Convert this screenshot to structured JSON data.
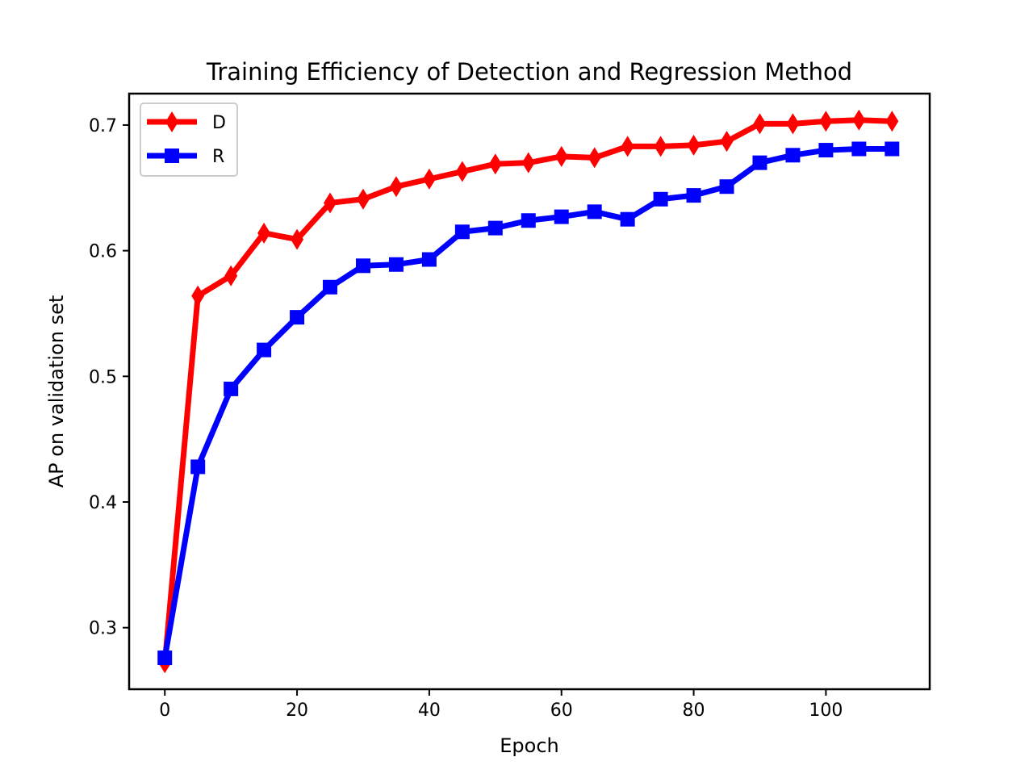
{
  "chart_data": {
    "type": "line",
    "title": "Training Efficiency of Detection and Regression Method",
    "xlabel": "Epoch",
    "ylabel": "AP on validation set",
    "xlim": [
      -5.4,
      115.7
    ],
    "ylim": [
      0.251,
      0.725
    ],
    "xticks": [
      0,
      20,
      40,
      60,
      80,
      100
    ],
    "xtick_labels": [
      "0",
      "20",
      "40",
      "60",
      "80",
      "100"
    ],
    "yticks": [
      0.3,
      0.4,
      0.5,
      0.6,
      0.7
    ],
    "ytick_labels": [
      "0.3",
      "0.4",
      "0.5",
      "0.6",
      "0.7"
    ],
    "grid": false,
    "legend_position": "top-left",
    "x": [
      0,
      5,
      10,
      15,
      20,
      25,
      30,
      35,
      40,
      45,
      50,
      55,
      60,
      65,
      70,
      75,
      80,
      85,
      90,
      95,
      100,
      105,
      110
    ],
    "series": [
      {
        "name": "D",
        "color": "#ff0000",
        "marker": "diamond",
        "values": [
          0.272,
          0.564,
          0.58,
          0.614,
          0.609,
          0.638,
          0.641,
          0.651,
          0.657,
          0.663,
          0.669,
          0.67,
          0.675,
          0.674,
          0.683,
          0.683,
          0.684,
          0.687,
          0.701,
          0.701,
          0.703,
          0.704,
          0.703
        ]
      },
      {
        "name": "R",
        "color": "#0000ff",
        "marker": "square",
        "values": [
          0.276,
          0.428,
          0.49,
          0.521,
          0.547,
          0.571,
          0.588,
          0.589,
          0.593,
          0.615,
          0.618,
          0.624,
          0.627,
          0.631,
          0.625,
          0.641,
          0.644,
          0.651,
          0.67,
          0.676,
          0.68,
          0.681,
          0.681
        ]
      }
    ]
  }
}
